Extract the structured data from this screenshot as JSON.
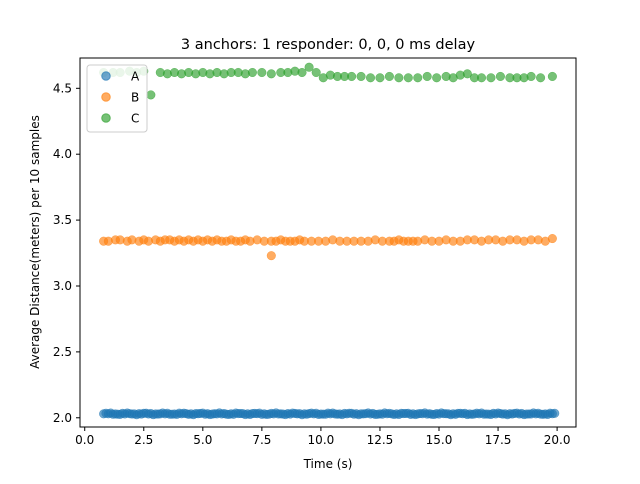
{
  "chart_data": {
    "type": "scatter",
    "title": "3 anchors: 1 responder: 0, 0, 0 ms delay",
    "xlabel": "Time (s)",
    "ylabel": "Average Distance(meters) per 10 samples",
    "xlim": [
      -0.2,
      20.8
    ],
    "ylim": [
      1.93,
      4.73
    ],
    "xticks": [
      0.0,
      2.5,
      5.0,
      7.5,
      10.0,
      12.5,
      15.0,
      17.5,
      20.0
    ],
    "xtick_labels": [
      "0.0",
      "2.5",
      "5.0",
      "7.5",
      "10.0",
      "12.5",
      "15.0",
      "17.5",
      "20.0"
    ],
    "yticks": [
      2.0,
      2.5,
      3.0,
      3.5,
      4.0,
      4.5
    ],
    "ytick_labels": [
      "2.0",
      "2.5",
      "3.0",
      "3.5",
      "4.0",
      "4.5"
    ],
    "grid": false,
    "legend_position": "top-left",
    "series": [
      {
        "name": "A",
        "color": "#1f77b4",
        "x_start": 0.8,
        "x_end": 19.95,
        "x_step": 0.1,
        "mean": 2.03,
        "jitter": 0.007
      },
      {
        "name": "B",
        "color": "#ff7f0e",
        "x": [
          0.8,
          1.0,
          1.3,
          1.5,
          1.8,
          2.0,
          2.3,
          2.5,
          2.7,
          3.0,
          3.2,
          3.4,
          3.6,
          3.8,
          4.0,
          4.2,
          4.4,
          4.6,
          4.8,
          5.0,
          5.2,
          5.4,
          5.6,
          5.8,
          6.0,
          6.2,
          6.4,
          6.6,
          6.8,
          7.0,
          7.3,
          7.6,
          7.9,
          8.1,
          8.3,
          8.5,
          8.7,
          8.9,
          9.1,
          9.3,
          9.6,
          9.9,
          10.2,
          10.5,
          10.8,
          11.1,
          11.4,
          11.7,
          12.0,
          12.3,
          12.6,
          12.9,
          13.1,
          13.3,
          13.5,
          13.7,
          13.9,
          14.1,
          14.4,
          14.7,
          15.0,
          15.3,
          15.6,
          15.9,
          16.2,
          16.5,
          16.8,
          17.1,
          17.4,
          17.7,
          18.0,
          18.3,
          18.6,
          18.9,
          19.2,
          19.5,
          19.8
        ],
        "y": [
          3.34,
          3.34,
          3.35,
          3.35,
          3.34,
          3.35,
          3.34,
          3.35,
          3.34,
          3.35,
          3.34,
          3.35,
          3.35,
          3.34,
          3.35,
          3.34,
          3.35,
          3.34,
          3.35,
          3.34,
          3.35,
          3.34,
          3.35,
          3.34,
          3.34,
          3.35,
          3.34,
          3.34,
          3.35,
          3.34,
          3.35,
          3.34,
          3.34,
          3.34,
          3.35,
          3.34,
          3.34,
          3.34,
          3.35,
          3.34,
          3.34,
          3.34,
          3.34,
          3.35,
          3.34,
          3.34,
          3.34,
          3.34,
          3.34,
          3.35,
          3.34,
          3.34,
          3.34,
          3.35,
          3.34,
          3.34,
          3.34,
          3.34,
          3.35,
          3.34,
          3.34,
          3.35,
          3.34,
          3.34,
          3.35,
          3.35,
          3.34,
          3.35,
          3.35,
          3.34,
          3.35,
          3.35,
          3.34,
          3.35,
          3.35,
          3.34,
          3.36
        ],
        "outliers": [
          {
            "x": 7.9,
            "y": 3.23
          }
        ]
      },
      {
        "name": "C",
        "color": "#2ca02c",
        "x": [
          0.8,
          1.2,
          1.5,
          1.9,
          2.2,
          2.5,
          3.2,
          3.5,
          3.8,
          4.1,
          4.4,
          4.7,
          5.0,
          5.3,
          5.6,
          5.9,
          6.2,
          6.5,
          6.8,
          7.1,
          7.5,
          7.9,
          8.3,
          8.6,
          8.9,
          9.2,
          9.5,
          9.8,
          10.1,
          10.4,
          10.7,
          11.0,
          11.3,
          11.7,
          12.1,
          12.5,
          12.9,
          13.3,
          13.7,
          14.1,
          14.5,
          14.9,
          15.3,
          15.6,
          15.9,
          16.2,
          16.5,
          16.8,
          17.2,
          17.6,
          18.0,
          18.3,
          18.6,
          18.9,
          19.3,
          19.8
        ],
        "y": [
          4.62,
          4.62,
          4.62,
          4.63,
          4.62,
          4.63,
          4.62,
          4.61,
          4.62,
          4.61,
          4.62,
          4.61,
          4.62,
          4.61,
          4.62,
          4.61,
          4.62,
          4.62,
          4.61,
          4.62,
          4.62,
          4.61,
          4.62,
          4.62,
          4.63,
          4.62,
          4.66,
          4.62,
          4.58,
          4.6,
          4.59,
          4.59,
          4.59,
          4.59,
          4.58,
          4.58,
          4.59,
          4.58,
          4.58,
          4.58,
          4.59,
          4.58,
          4.59,
          4.58,
          4.6,
          4.61,
          4.58,
          4.58,
          4.58,
          4.59,
          4.58,
          4.58,
          4.58,
          4.59,
          4.58,
          4.59
        ],
        "outliers": [
          {
            "x": 2.8,
            "y": 4.45
          }
        ]
      }
    ]
  }
}
